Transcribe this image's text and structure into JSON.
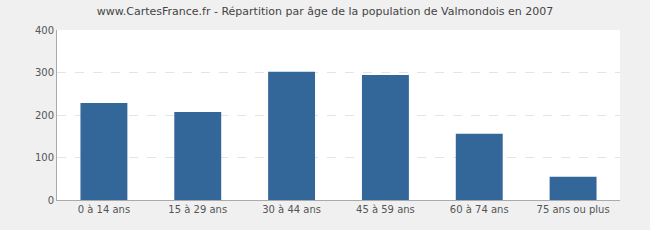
{
  "chart_data": {
    "type": "bar",
    "title": "www.CartesFrance.fr - Répartition par âge de la population de Valmondois en 2007",
    "categories": [
      "0 à 14 ans",
      "15 à 29 ans",
      "30 à 44 ans",
      "45 à 59 ans",
      "60 à 74 ans",
      "75 ans ou plus"
    ],
    "values": [
      228,
      207,
      302,
      294,
      156,
      55
    ],
    "color": "#336699",
    "ylim": [
      0,
      400
    ],
    "yticks": [
      0,
      100,
      200,
      300,
      400
    ],
    "grid": true
  }
}
